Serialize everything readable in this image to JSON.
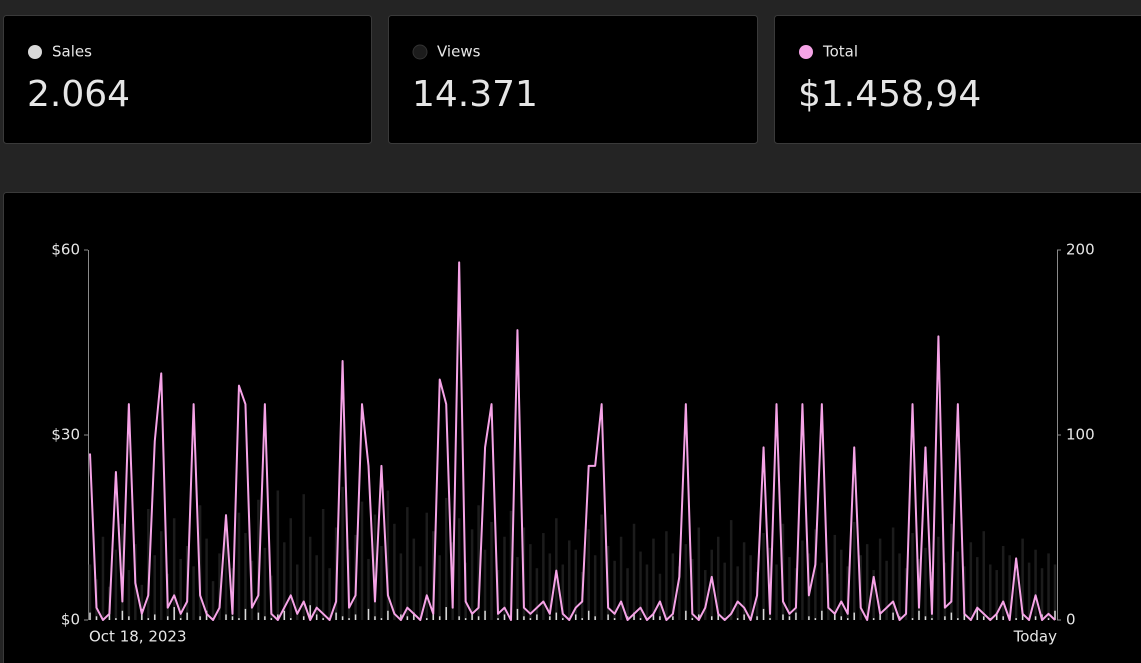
{
  "stats": [
    "2.064",
    "14.371",
    "$1.458,94"
  ],
  "chart_data": {
    "type": "combo",
    "categories": [
      "Oct 18, 2023",
      null,
      null,
      null,
      null,
      null,
      null,
      null,
      null,
      null,
      null,
      null,
      null,
      null,
      null,
      null,
      null,
      null,
      null,
      null,
      null,
      null,
      null,
      null,
      null,
      null,
      null,
      null,
      null,
      null,
      null,
      null,
      null,
      null,
      null,
      null,
      null,
      null,
      null,
      null,
      null,
      null,
      null,
      null,
      null,
      null,
      null,
      null,
      null,
      null,
      null,
      null,
      null,
      null,
      null,
      null,
      null,
      null,
      null,
      null,
      null,
      null,
      null,
      null,
      null,
      null,
      null,
      null,
      null,
      null,
      null,
      null,
      null,
      null,
      null,
      null,
      null,
      null,
      null,
      null,
      null,
      null,
      null,
      null,
      null,
      null,
      null,
      null,
      null,
      null,
      null,
      null,
      null,
      null,
      null,
      null,
      null,
      null,
      null,
      null,
      null,
      null,
      null,
      null,
      null,
      null,
      null,
      null,
      null,
      null,
      null,
      null,
      null,
      null,
      null,
      null,
      null,
      null,
      null,
      null,
      null,
      null,
      null,
      null,
      null,
      null,
      null,
      null,
      null,
      null,
      null,
      null,
      null,
      null,
      null,
      null,
      null,
      null,
      null,
      null,
      null,
      null,
      null,
      null,
      null,
      null,
      null,
      null,
      null,
      "Today"
    ],
    "ylim": [
      0,
      60
    ],
    "yticks": [
      {
        "value": 0,
        "label": "$0"
      },
      {
        "value": 30,
        "label": "$30"
      },
      {
        "value": 60,
        "label": "$60"
      }
    ],
    "y2lim": [
      0,
      200
    ],
    "y2ticks": [
      0,
      100,
      200
    ],
    "series": [
      {
        "name": "Sales",
        "color": "#d9d9d9",
        "style": "bar",
        "axis": "y2",
        "values": [
          4,
          2,
          0,
          3,
          1,
          5,
          2,
          0,
          6,
          1,
          3,
          0,
          2,
          7,
          1,
          4,
          0,
          2,
          5,
          1,
          0,
          3,
          2,
          1,
          6,
          0,
          4,
          2,
          1,
          3,
          5,
          1,
          0,
          2,
          8,
          3,
          1,
          0,
          4,
          2,
          1,
          3,
          0,
          6,
          2,
          1,
          5,
          0,
          3,
          2,
          4,
          0,
          1,
          3,
          2,
          7,
          0,
          2,
          1,
          4,
          2,
          5,
          0,
          1,
          3,
          0,
          6,
          2,
          1,
          3,
          0,
          2,
          4,
          1,
          0,
          3,
          1,
          5,
          2,
          0,
          3,
          1,
          0,
          2,
          4,
          1,
          0,
          3,
          2,
          1,
          2,
          0,
          5,
          1,
          3,
          0,
          2,
          4,
          1,
          0,
          1,
          3,
          0,
          2,
          6,
          1,
          0,
          3,
          2,
          4,
          0,
          2,
          1,
          5,
          0,
          3,
          2,
          1,
          4,
          0,
          2,
          1,
          3,
          0,
          4,
          2,
          0,
          1,
          5,
          2,
          1,
          0,
          2,
          4,
          1,
          3,
          0,
          6,
          2,
          1,
          3,
          2,
          0,
          1,
          4,
          0,
          2,
          3,
          1,
          5
        ]
      },
      {
        "name": "Views",
        "color": "#1c1c1c",
        "style": "bar",
        "axis": "y2",
        "values": [
          30,
          22,
          45,
          18,
          38,
          52,
          27,
          41,
          19,
          60,
          35,
          48,
          25,
          55,
          33,
          40,
          29,
          62,
          44,
          21,
          36,
          50,
          28,
          58,
          47,
          32,
          65,
          39,
          24,
          70,
          42,
          55,
          30,
          68,
          45,
          35,
          60,
          28,
          50,
          72,
          38,
          46,
          64,
          33,
          57,
          40,
          70,
          52,
          36,
          61,
          44,
          29,
          58,
          48,
          35,
          66,
          42,
          55,
          31,
          49,
          62,
          38,
          53,
          27,
          45,
          59,
          34,
          50,
          41,
          28,
          47,
          36,
          55,
          30,
          43,
          38,
          26,
          49,
          35,
          57,
          40,
          32,
          45,
          28,
          52,
          37,
          30,
          44,
          25,
          48,
          36,
          29,
          41,
          33,
          50,
          27,
          38,
          45,
          31,
          54,
          29,
          42,
          35,
          26,
          47,
          39,
          30,
          52,
          34,
          28,
          43,
          36,
          49,
          31,
          25,
          46,
          38,
          29,
          53,
          35,
          41,
          27,
          44,
          32,
          50,
          36,
          28,
          47,
          33,
          39,
          26,
          45,
          31,
          52,
          37,
          29,
          42,
          34,
          48,
          30,
          27,
          40,
          35,
          25,
          44,
          31,
          38,
          28,
          36,
          30
        ]
      },
      {
        "name": "Total",
        "color": "#f5a3e6",
        "style": "line",
        "axis": "y",
        "values": [
          27,
          2,
          0,
          1,
          24,
          3,
          35,
          6,
          1,
          4,
          29,
          40,
          2,
          4,
          1,
          3,
          35,
          4,
          1,
          0,
          2,
          17,
          1,
          38,
          35,
          2,
          4,
          35,
          1,
          0,
          2,
          4,
          1,
          3,
          0,
          2,
          1,
          0,
          3,
          42,
          2,
          4,
          35,
          25,
          3,
          25,
          4,
          1,
          0,
          2,
          1,
          0,
          4,
          1,
          39,
          35,
          2,
          58,
          3,
          1,
          2,
          28,
          35,
          1,
          2,
          0,
          47,
          2,
          1,
          2,
          3,
          1,
          8,
          1,
          0,
          2,
          3,
          25,
          25,
          35,
          2,
          1,
          3,
          0,
          1,
          2,
          0,
          1,
          3,
          0,
          1,
          7,
          35,
          1,
          0,
          2,
          7,
          1,
          0,
          1,
          3,
          2,
          0,
          4,
          28,
          1,
          35,
          3,
          1,
          2,
          35,
          4,
          9,
          35,
          2,
          1,
          3,
          1,
          28,
          2,
          0,
          7,
          1,
          2,
          3,
          0,
          1,
          35,
          2,
          28,
          1,
          46,
          2,
          3,
          35,
          1,
          0,
          2,
          1,
          0,
          1,
          3,
          0,
          10,
          1,
          0,
          4,
          0,
          1,
          0
        ]
      }
    ]
  }
}
